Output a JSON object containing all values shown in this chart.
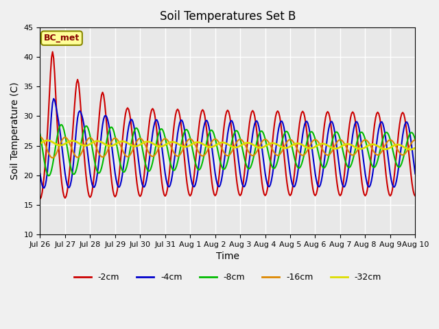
{
  "title": "Soil Temperatures Set B",
  "xlabel": "Time",
  "ylabel": "Soil Temperature (C)",
  "annotation": "BC_met",
  "ylim": [
    10,
    45
  ],
  "series": {
    "-2cm": {
      "color": "#cc0000",
      "lw": 1.5
    },
    "-4cm": {
      "color": "#0000cc",
      "lw": 1.5
    },
    "-8cm": {
      "color": "#00bb00",
      "lw": 1.5
    },
    "-16cm": {
      "color": "#dd8800",
      "lw": 1.5
    },
    "-32cm": {
      "color": "#dddd00",
      "lw": 2.0
    }
  },
  "legend_order": [
    "-2cm",
    "-4cm",
    "-8cm",
    "-16cm",
    "-32cm"
  ],
  "xtick_labels": [
    "Jul 26",
    "Jul 27",
    "Jul 28",
    "Jul 29",
    "Jul 30",
    "Jul 31",
    "Aug 1",
    "Aug 2",
    "Aug 3",
    "Aug 4",
    "Aug 5",
    "Aug 6",
    "Aug 7",
    "Aug 8",
    "Aug 9",
    "Aug 10"
  ],
  "background_color": "#f0f0f0",
  "plot_bg_color": "#e8e8e8",
  "grid_color": "#ffffff",
  "annotation_bg": "#ffff99",
  "annotation_fg": "#880000"
}
